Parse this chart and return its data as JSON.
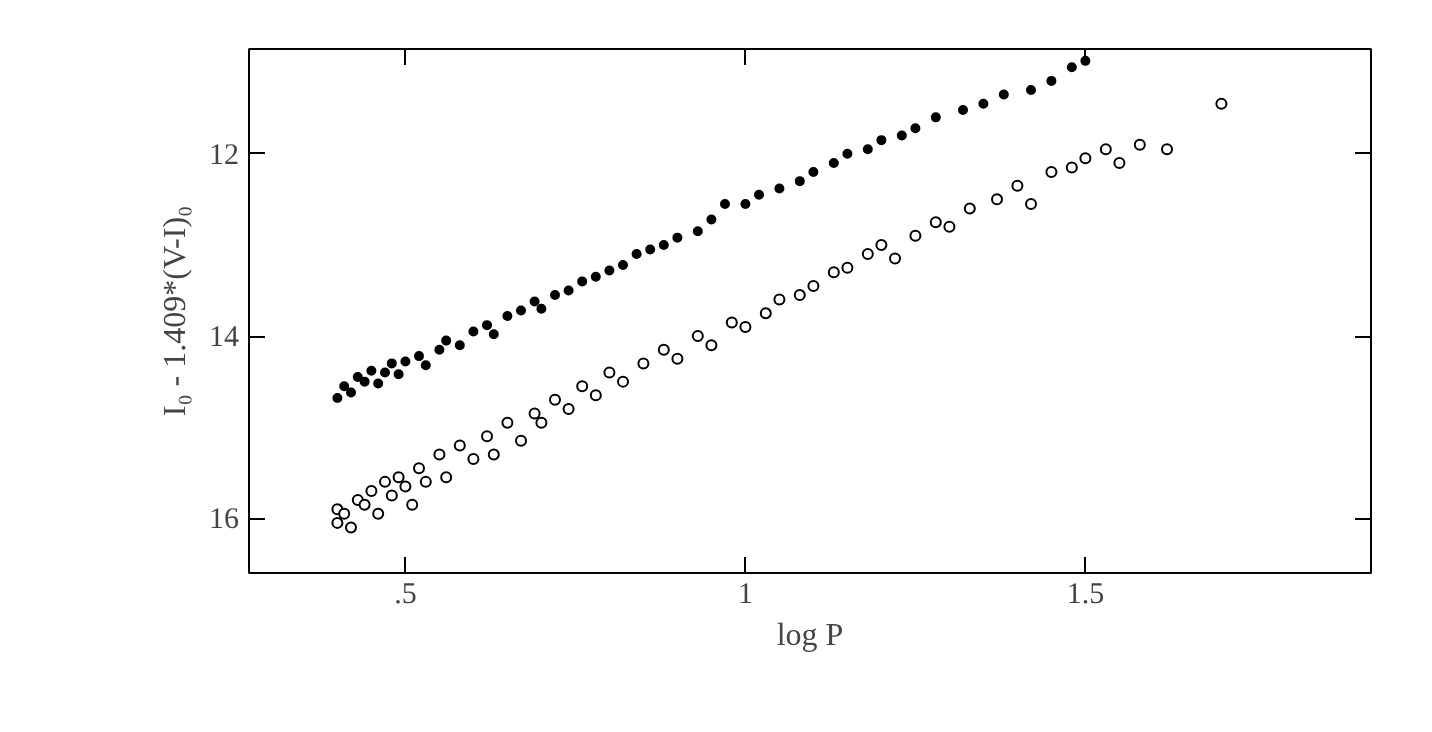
{
  "chart_data": {
    "type": "scatter",
    "xlabel": "log P",
    "ylabel": "I₀ - 1.409*(V-I)₀",
    "xlim": [
      0.27,
      1.92
    ],
    "ylim": [
      16.6,
      10.85
    ],
    "xticks": [
      {
        "value": 0.5,
        "label": ".5"
      },
      1,
      1.5
    ],
    "yticks": [
      12,
      14,
      16
    ],
    "grid": false,
    "series": [
      {
        "color": "#000000",
        "marker": "circle",
        "x": [
          0.4,
          0.41,
          0.42,
          0.43,
          0.44,
          0.45,
          0.46,
          0.47,
          0.48,
          0.49,
          0.5,
          0.52,
          0.53,
          0.55,
          0.56,
          0.58,
          0.6,
          0.62,
          0.63,
          0.65,
          0.67,
          0.69,
          0.7,
          0.72,
          0.74,
          0.76,
          0.78,
          0.8,
          0.82,
          0.84,
          0.86,
          0.88,
          0.9,
          0.93,
          0.95,
          0.97,
          1.0,
          1.02,
          1.05,
          1.08,
          1.1,
          1.13,
          1.15,
          1.18,
          1.2,
          1.23,
          1.25,
          1.28,
          1.32,
          1.35,
          1.38,
          1.42,
          1.45,
          1.48,
          1.5
        ],
        "values": [
          14.68,
          14.55,
          14.62,
          14.45,
          14.5,
          14.38,
          14.52,
          14.4,
          14.3,
          14.42,
          14.28,
          14.22,
          14.32,
          14.15,
          14.05,
          14.1,
          13.95,
          13.88,
          13.98,
          13.78,
          13.72,
          13.62,
          13.7,
          13.55,
          13.5,
          13.4,
          13.35,
          13.28,
          13.22,
          13.1,
          13.05,
          13.0,
          12.92,
          12.85,
          12.72,
          12.55,
          12.55,
          12.45,
          12.38,
          12.3,
          12.2,
          12.1,
          12.0,
          11.95,
          11.85,
          11.8,
          11.72,
          11.6,
          11.52,
          11.45,
          11.35,
          11.3,
          11.2,
          11.05,
          10.98
        ]
      },
      {
        "color": "#000000",
        "marker": "circle_open",
        "x": [
          0.4,
          0.4,
          0.41,
          0.42,
          0.43,
          0.44,
          0.45,
          0.46,
          0.47,
          0.48,
          0.49,
          0.5,
          0.51,
          0.52,
          0.53,
          0.55,
          0.56,
          0.58,
          0.6,
          0.62,
          0.63,
          0.65,
          0.67,
          0.69,
          0.7,
          0.72,
          0.74,
          0.76,
          0.78,
          0.8,
          0.82,
          0.85,
          0.88,
          0.9,
          0.93,
          0.95,
          0.98,
          1.0,
          1.03,
          1.05,
          1.08,
          1.1,
          1.13,
          1.15,
          1.18,
          1.2,
          1.22,
          1.25,
          1.28,
          1.3,
          1.33,
          1.37,
          1.4,
          1.42,
          1.45,
          1.48,
          1.5,
          1.53,
          1.55,
          1.58,
          1.62,
          1.7
        ],
        "values": [
          16.05,
          15.9,
          15.95,
          16.1,
          15.8,
          15.85,
          15.7,
          15.95,
          15.6,
          15.75,
          15.55,
          15.65,
          15.85,
          15.45,
          15.6,
          15.3,
          15.55,
          15.2,
          15.35,
          15.1,
          15.3,
          14.95,
          15.15,
          14.85,
          14.95,
          14.7,
          14.8,
          14.55,
          14.65,
          14.4,
          14.5,
          14.3,
          14.15,
          14.25,
          14.0,
          14.1,
          13.85,
          13.9,
          13.75,
          13.6,
          13.55,
          13.45,
          13.3,
          13.25,
          13.1,
          13.0,
          13.15,
          12.9,
          12.75,
          12.8,
          12.6,
          12.5,
          12.35,
          12.55,
          12.2,
          12.15,
          12.05,
          11.95,
          12.1,
          11.9,
          11.95,
          11.45
        ]
      }
    ]
  }
}
